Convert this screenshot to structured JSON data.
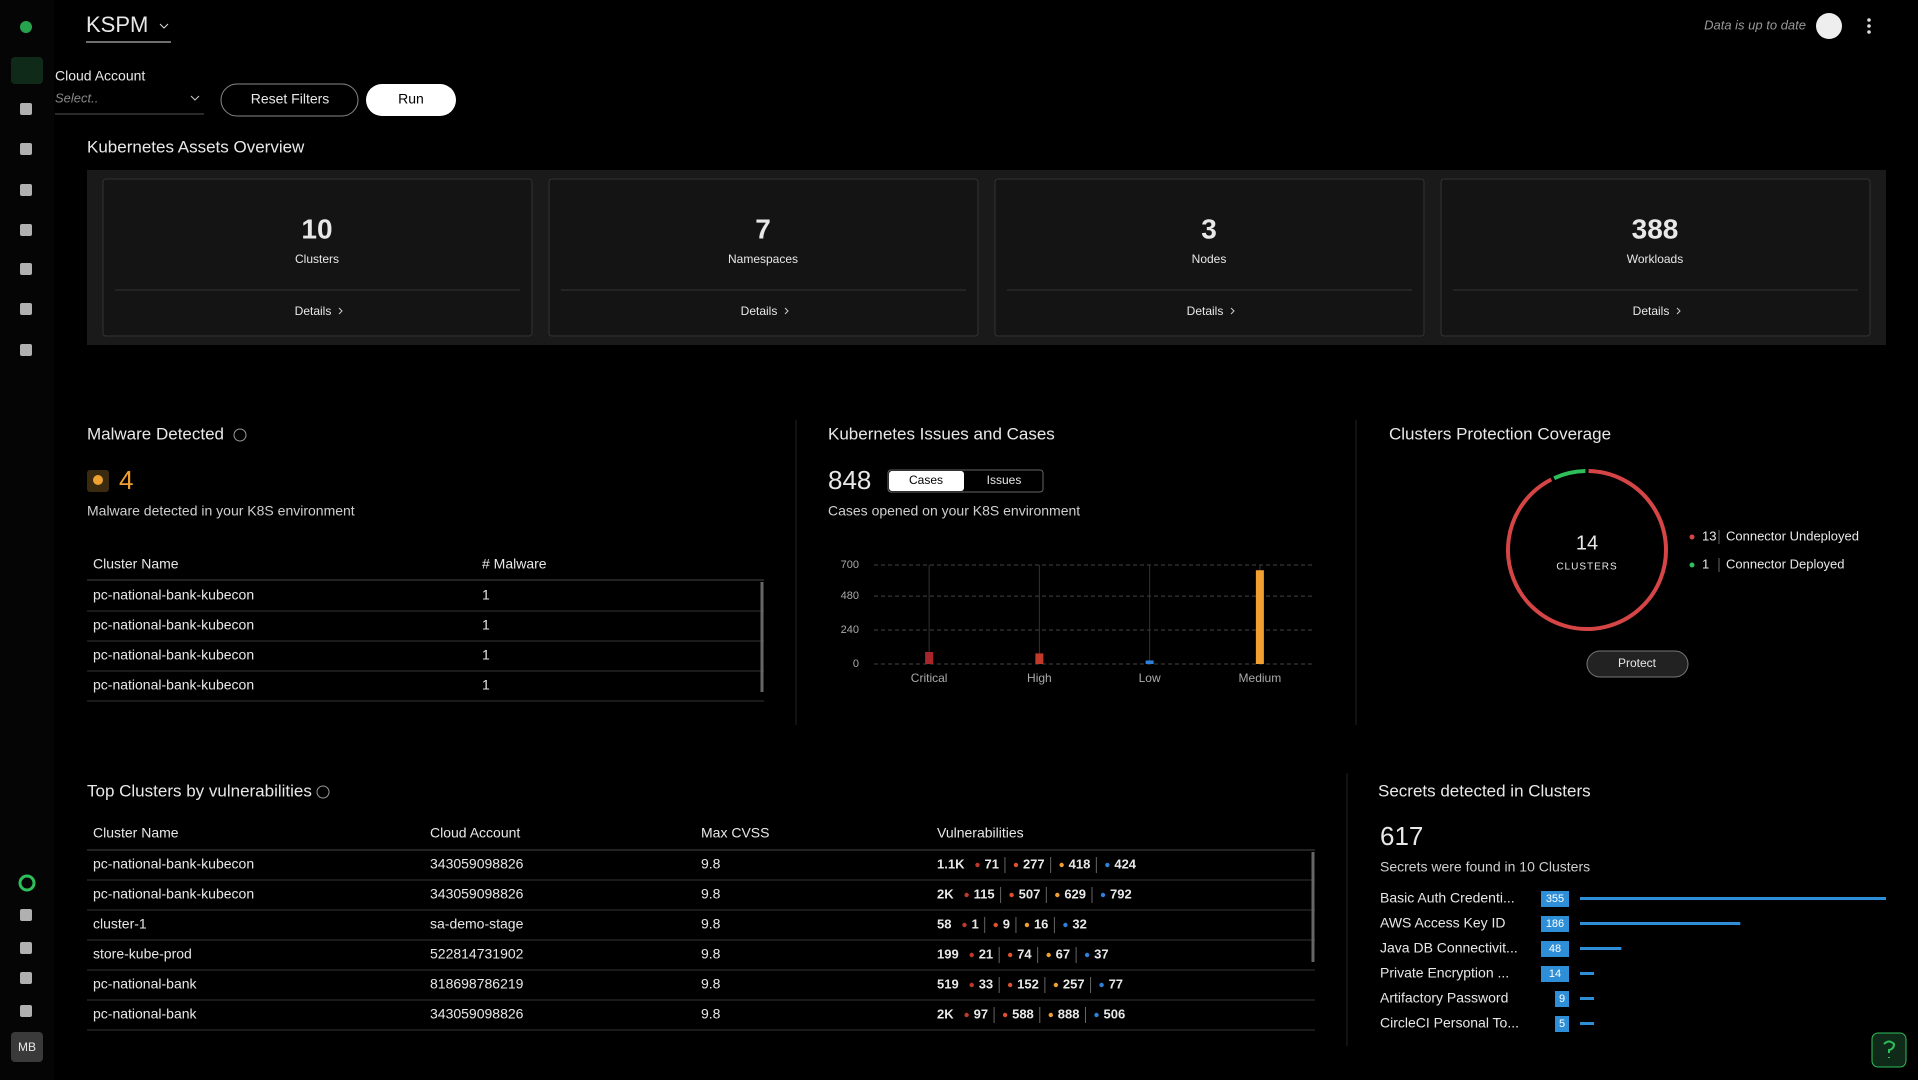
{
  "header": {
    "title": "KSPM",
    "status": "Data is up to date",
    "avatar": "MB"
  },
  "filters": {
    "label": "Cloud Account",
    "placeholder": "Select..",
    "reset": "Reset Filters",
    "run": "Run"
  },
  "overview": {
    "title": "Kubernetes Assets Overview",
    "cards": [
      {
        "value": 10,
        "label": "Clusters",
        "link": "Details"
      },
      {
        "value": 7,
        "label": "Namespaces",
        "link": "Details"
      },
      {
        "value": 3,
        "label": "Nodes",
        "link": "Details"
      },
      {
        "value": 388,
        "label": "Workloads",
        "link": "Details"
      }
    ]
  },
  "malware": {
    "title": "Malware Detected",
    "count": 4,
    "description": "Malware detected in your K8S environment",
    "columns": [
      "Cluster Name",
      "# Malware"
    ],
    "rows": [
      [
        "pc-national-bank-kubecon",
        1
      ],
      [
        "pc-national-bank-kubecon",
        1
      ],
      [
        "pc-national-bank-kubecon",
        1
      ],
      [
        "pc-national-bank-kubecon",
        1
      ]
    ]
  },
  "issues": {
    "title": "Kubernetes Issues and Cases",
    "total": 848,
    "tabs": [
      "Cases",
      "Issues"
    ],
    "description": "Cases opened on your K8S environment",
    "chart_data": {
      "type": "bar",
      "categories": [
        "Critical",
        "High",
        "Low",
        "Medium"
      ],
      "values": [
        85,
        75,
        25,
        663
      ],
      "colors": [
        "#a8262b",
        "#c0392b",
        "#2f80d8",
        "#f0a030"
      ],
      "ylim": [
        0,
        700
      ],
      "yticks": [
        0,
        240,
        480,
        700
      ],
      "grid": true
    }
  },
  "coverage": {
    "title": "Clusters Protection Coverage",
    "button": "Protect",
    "chart_data": {
      "type": "donut",
      "center_value": 14,
      "center_label": "CLUSTERS",
      "series": [
        {
          "name": "Connector Undeployed",
          "color": "#d64545",
          "value": 13
        },
        {
          "name": "Connector Deployed",
          "color": "#2fbf5a",
          "value": 1
        }
      ]
    }
  },
  "vulnerabilities": {
    "title": "Top Clusters by vulnerabilities",
    "columns": [
      "Cluster Name",
      "Cloud Account",
      "Max CVSS",
      "Vulnerabilities"
    ],
    "severity_colors": [
      "#c0392b",
      "#e0522e",
      "#f0a030",
      "#2f80d8"
    ],
    "rows": [
      {
        "cluster": "pc-national-bank-kubecon",
        "account": "343059098826",
        "cvss": 9.8,
        "counts": [
          "1.1K",
          71,
          277,
          418,
          424
        ]
      },
      {
        "cluster": "pc-national-bank-kubecon",
        "account": "343059098826",
        "cvss": 9.8,
        "counts": [
          "2K",
          115,
          507,
          629,
          792
        ]
      },
      {
        "cluster": "cluster-1",
        "account": "sa-demo-stage",
        "cvss": 9.8,
        "counts": [
          58,
          1,
          9,
          16,
          32
        ]
      },
      {
        "cluster": "store-kube-prod",
        "account": "522814731902",
        "cvss": 9.8,
        "counts": [
          199,
          21,
          74,
          67,
          37
        ]
      },
      {
        "cluster": "pc-national-bank",
        "account": "818698786219",
        "cvss": 9.8,
        "counts": [
          519,
          33,
          152,
          257,
          77
        ]
      },
      {
        "cluster": "pc-national-bank",
        "account": "343059098826",
        "cvss": 9.8,
        "counts": [
          "2K",
          97,
          588,
          888,
          506
        ]
      }
    ]
  },
  "secrets": {
    "title": "Secrets detected in Clusters",
    "total": 617,
    "description": "Secrets were found in 10 Clusters",
    "chart_data": {
      "type": "hbar",
      "color": "#2e8fd8",
      "categories": [
        "Basic Auth Credenti...",
        "AWS Access Key ID",
        "Java DB Connectivit...",
        "Private Encryption ...",
        "Artifactory Password",
        "CircleCI Personal To..."
      ],
      "values": [
        355,
        186,
        48,
        14,
        9,
        5
      ]
    }
  }
}
